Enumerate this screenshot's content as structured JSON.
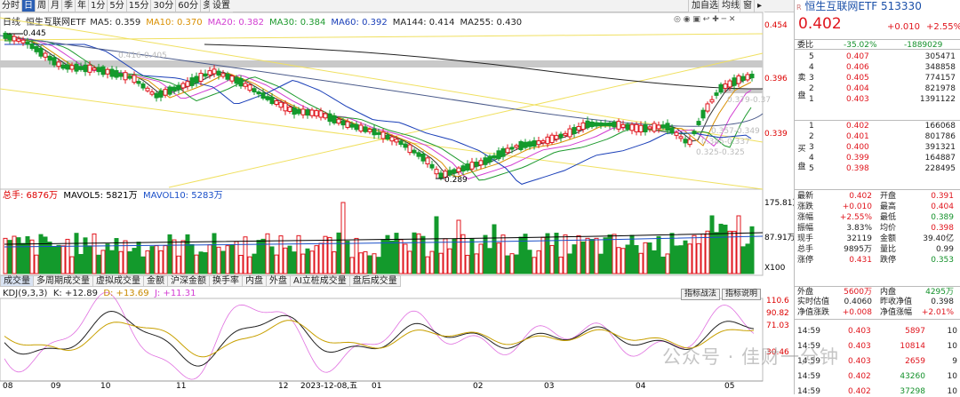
{
  "toolbar": {
    "tabs": [
      "分时",
      "日",
      "周",
      "月",
      "季",
      "年",
      "1分",
      "5分",
      "15分",
      "30分",
      "60分",
      "多周期"
    ],
    "active": 1,
    "settings": "设置",
    "right_buttons": [
      "加自选",
      "均线",
      "窗"
    ]
  },
  "main_indicator": {
    "label": "日线",
    "name": "恒生互联网ETF",
    "items": [
      {
        "text": "MA5: 0.359",
        "color": "#2a2a2a"
      },
      {
        "text": "MA10: 0.370",
        "color": "#d98f00"
      },
      {
        "text": "MA20: 0.382",
        "color": "#d23fd2"
      },
      {
        "text": "MA30: 0.384",
        "color": "#1e9a2e"
      },
      {
        "text": "MA60: 0.392",
        "color": "#1a3fb8"
      },
      {
        "text": "MA144: 0.414",
        "color": "#222"
      },
      {
        "text": "MA255: 0.430",
        "color": "#222"
      }
    ]
  },
  "price_axis": [
    "0.454",
    "0.396",
    "0.339"
  ],
  "annotations": {
    "high": "0.445",
    "low": "0.289",
    "fib_top": "0.416-0.405",
    "fib_a": "0.379-0.37",
    "fib_b": "0.357-0.349",
    "fib_c": "0.345-0.337",
    "fib_d": "0.325-0.325"
  },
  "volume_header": {
    "total": "总手: 6876万",
    "ma5": "MAVOL5: 5821万",
    "ma10": "MAVOL10: 5283万"
  },
  "volume_axis": [
    "175.81万",
    "87.91万",
    "X100"
  ],
  "indicator_tabs": [
    "成交量",
    "多周期成交量",
    "虚拟成交量",
    "金额",
    "沪深金额",
    "换手率",
    "内盘",
    "外盘",
    "AI立桩成交量",
    "盘后成交量"
  ],
  "kdj_header": {
    "name": "KDJ(9,3,3)",
    "k": "K: +12.89",
    "d": "D: +13.69",
    "j": "J: +11.31"
  },
  "kdj_buttons": [
    "指标战法",
    "指标说明"
  ],
  "kdj_axis": [
    "110.6",
    "90.82",
    "71.03",
    "30.46"
  ],
  "date_axis": [
    "08",
    "09",
    "10",
    "11",
    "12",
    "2023-12-08,五",
    "01",
    "02",
    "03",
    "04",
    "05"
  ],
  "quote": {
    "title": "恒生互联网ETF 513330",
    "price": "0.402",
    "change": "+0.010",
    "pct": "+2.55%",
    "weibi_label": "委比",
    "weibi": "-35.02%",
    "weicha": "-1889029",
    "sell_label": "卖盘",
    "buy_label": "买盘",
    "asks": [
      [
        "5",
        "0.407",
        "305471"
      ],
      [
        "4",
        "0.406",
        "348858"
      ],
      [
        "3",
        "0.405",
        "774157"
      ],
      [
        "2",
        "0.404",
        "821978"
      ],
      [
        "1",
        "0.403",
        "1391122"
      ]
    ],
    "bids": [
      [
        "1",
        "0.402",
        "166068"
      ],
      [
        "2",
        "0.401",
        "801786"
      ],
      [
        "3",
        "0.400",
        "391321"
      ],
      [
        "4",
        "0.399",
        "164887"
      ],
      [
        "5",
        "0.398",
        "228495"
      ]
    ],
    "stats": [
      [
        "最新",
        "0.402",
        "red",
        "开盘",
        "0.391",
        "red"
      ],
      [
        "涨跌",
        "+0.010",
        "red",
        "最高",
        "0.404",
        "red"
      ],
      [
        "涨幅",
        "+2.55%",
        "red",
        "最低",
        "0.389",
        "grn"
      ],
      [
        "振幅",
        "3.83%",
        "blk",
        "均价",
        "0.398",
        "red"
      ],
      [
        "现手",
        "32119",
        "blk",
        "金额",
        "39.40亿",
        "blk"
      ],
      [
        "总手",
        "9895万",
        "blk",
        "量比",
        "0.99",
        "blk"
      ],
      [
        "涨停",
        "0.431",
        "red",
        "跌停",
        "0.353",
        "grn"
      ]
    ],
    "outer_label": "外盘",
    "outer": "5600万",
    "inner_label": "内盘",
    "inner": "4295万",
    "iopv_label": "实时估值",
    "iopv": "0.4060",
    "prev_nav_label": "昨收净值",
    "prev_nav": "0.398",
    "nav_chg_label": "净值涨跌",
    "nav_chg": "+0.008",
    "nav_pct_label": "净值涨幅",
    "nav_pct": "+2.01%",
    "ticks": [
      [
        "14:59",
        "0.403",
        "5897",
        "10"
      ],
      [
        "14:59",
        "0.403",
        "10814",
        "10"
      ],
      [
        "14:59",
        "0.403",
        "2659",
        "9"
      ],
      [
        "14:59",
        "0.402",
        "43260",
        "10"
      ],
      [
        "14:59",
        "0.402",
        "37298",
        "10"
      ]
    ]
  },
  "watermark": "公众号 · 佳财一分钟"
}
